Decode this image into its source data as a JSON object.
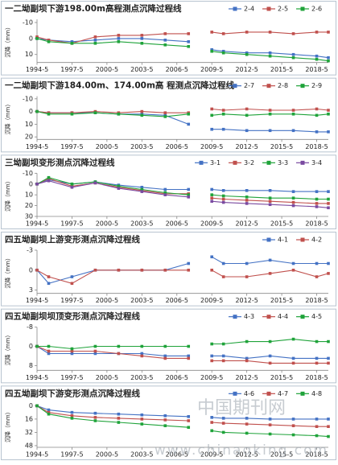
{
  "chart_data": [
    {
      "type": "line",
      "title": "一二坳副坝下游198.00m高程测点沉降过程线",
      "y_label": "沉降（mm）",
      "x": [
        "1994-5",
        "1995-5",
        "1997-5",
        "1999-5",
        "2001-5",
        "2003-5",
        "2005-5",
        "2007-5",
        "2008-5",
        "2009-5",
        "2010-5",
        "2012-5",
        "2014-5",
        "2016-5",
        "2018-5",
        "2019-5"
      ],
      "xlim": [
        "1994-5",
        "2019-5"
      ],
      "xticks": [
        "1994-5",
        "1997-5",
        "2000-5",
        "2003-5",
        "2006-5",
        "2009-5",
        "2012-5",
        "2015-5",
        "2018-5"
      ],
      "ylim": [
        -12,
        15
      ],
      "yticks": [
        -10,
        0,
        10
      ],
      "y_inverted": true,
      "series": [
        {
          "name": "2-4",
          "color": "#4472c4",
          "values": [
            0,
            1,
            2,
            1,
            0,
            0,
            1,
            2,
            null,
            7,
            8,
            9,
            9,
            10,
            11,
            12
          ]
        },
        {
          "name": "2-5",
          "color": "#c0504d",
          "values": [
            -1,
            1,
            3,
            -1,
            -2,
            -2,
            -3,
            -3,
            null,
            -4,
            -3,
            -4,
            -4,
            -3,
            -4,
            -4
          ]
        },
        {
          "name": "2-6",
          "color": "#1fa33a",
          "values": [
            0,
            2,
            3,
            3,
            2,
            3,
            4,
            5,
            null,
            8,
            9,
            10,
            11,
            12,
            13,
            14
          ]
        }
      ]
    },
    {
      "type": "line",
      "title": "一二坳副坝下游184.00m、174.00m高 程测点沉降过程线",
      "y_label": "沉降（mm）",
      "x": [
        "1994-5",
        "1995-5",
        "1997-5",
        "1999-5",
        "2001-5",
        "2003-5",
        "2005-5",
        "2007-5",
        "2008-5",
        "2009-5",
        "2010-5",
        "2012-5",
        "2014-5",
        "2016-5",
        "2018-5",
        "2019-5"
      ],
      "xlim": [
        "1994-5",
        "2019-5"
      ],
      "xticks": [
        "1994-5",
        "1997-5",
        "2000-5",
        "2003-5",
        "2006-5",
        "2009-5",
        "2012-5",
        "2015-5",
        "2018-5"
      ],
      "ylim": [
        -12,
        22
      ],
      "yticks": [
        -10,
        0,
        10,
        20
      ],
      "y_inverted": true,
      "series": [
        {
          "name": "2-7",
          "color": "#4472c4",
          "values": [
            0,
            1,
            1,
            1,
            2,
            2,
            3,
            10,
            null,
            14,
            14,
            15,
            15,
            15,
            16,
            16
          ]
        },
        {
          "name": "2-8",
          "color": "#c0504d",
          "values": [
            0,
            1,
            1,
            0,
            1,
            0,
            1,
            1,
            null,
            -2,
            -1,
            -2,
            -1,
            -1,
            -2,
            -1
          ]
        },
        {
          "name": "2-9",
          "color": "#1fa33a",
          "values": [
            0,
            2,
            2,
            1,
            2,
            3,
            4,
            2,
            null,
            3,
            2,
            3,
            2,
            2,
            3,
            2
          ]
        }
      ]
    },
    {
      "type": "line",
      "title": "三坳副坝变形测点沉降过程线",
      "y_label": "沉降（mm）",
      "x": [
        "1994-5",
        "1995-5",
        "1997-5",
        "1999-5",
        "2001-5",
        "2003-5",
        "2005-5",
        "2007-5",
        "2008-5",
        "2009-5",
        "2010-5",
        "2012-5",
        "2014-5",
        "2016-5",
        "2018-5",
        "2019-5"
      ],
      "xlim": [
        "1994-5",
        "2019-5"
      ],
      "xticks": [
        "1994-5",
        "1997-5",
        "2000-5",
        "2003-5",
        "2006-5",
        "2009-5",
        "2012-5",
        "2015-5",
        "2018-5"
      ],
      "ylim": [
        -10,
        30
      ],
      "yticks": [
        -10,
        0,
        10,
        20,
        30
      ],
      "y_inverted": true,
      "series": [
        {
          "name": "3-1",
          "color": "#4472c4",
          "values": [
            0,
            -4,
            0,
            -2,
            1,
            3,
            5,
            5,
            null,
            5,
            6,
            6,
            6,
            7,
            7,
            7
          ]
        },
        {
          "name": "3-2",
          "color": "#c0504d",
          "values": [
            0,
            -5,
            2,
            -1,
            3,
            6,
            9,
            9,
            null,
            13,
            14,
            15,
            16,
            17,
            18,
            18
          ]
        },
        {
          "name": "3-3",
          "color": "#1fa33a",
          "values": [
            0,
            -6,
            0,
            -2,
            2,
            5,
            8,
            10,
            null,
            10,
            11,
            12,
            13,
            13,
            14,
            14
          ]
        },
        {
          "name": "3-4",
          "color": "#7a4aa0",
          "values": [
            0,
            -3,
            3,
            -1,
            4,
            7,
            10,
            12,
            null,
            16,
            17,
            18,
            19,
            20,
            21,
            22
          ]
        }
      ]
    },
    {
      "type": "line",
      "title": "四五坳副坝上游变形测点沉降过程线",
      "y_label": "沉降（mm）",
      "x": [
        "1994-5",
        "1995-5",
        "1997-5",
        "1999-5",
        "2001-5",
        "2003-5",
        "2005-5",
        "2007-5",
        "2008-5",
        "2009-5",
        "2010-5",
        "2012-5",
        "2014-5",
        "2016-5",
        "2018-5",
        "2019-5"
      ],
      "xlim": [
        "1994-5",
        "2019-5"
      ],
      "xticks": [
        "1994-5",
        "1997-5",
        "2000-5",
        "2003-5",
        "2006-5",
        "2009-5",
        "2012-5",
        "2015-5",
        "2018-5"
      ],
      "ylim": [
        -3,
        3.5
      ],
      "yticks": [
        -3,
        0,
        3
      ],
      "y_inverted": true,
      "series": [
        {
          "name": "4-1",
          "color": "#4472c4",
          "values": [
            0,
            2,
            1,
            0,
            0,
            0,
            0,
            -1,
            null,
            -2,
            -1,
            -1,
            -1.5,
            -1,
            -1,
            -1
          ]
        },
        {
          "name": "4-2",
          "color": "#c0504d",
          "values": [
            0,
            1,
            2,
            0,
            0,
            0,
            0,
            0,
            null,
            0,
            1,
            1,
            0.5,
            0,
            1,
            0.5
          ]
        }
      ]
    },
    {
      "type": "line",
      "title": "四五坳副坝坝顶变形测点沉降过程线",
      "y_label": "沉降（mm）",
      "x": [
        "1994-5",
        "1995-5",
        "1997-5",
        "1999-5",
        "2001-5",
        "2003-5",
        "2005-5",
        "2007-5",
        "2008-5",
        "2009-5",
        "2010-5",
        "2012-5",
        "2014-5",
        "2016-5",
        "2018-5",
        "2019-5"
      ],
      "xlim": [
        "1994-5",
        "2019-5"
      ],
      "xticks": [
        "1994-5",
        "1997-5",
        "2000-5",
        "2003-5",
        "2006-5",
        "2009-5",
        "2012-5",
        "2015-5",
        "2018-5"
      ],
      "ylim": [
        -8,
        10
      ],
      "yticks": [
        -8,
        0,
        8
      ],
      "y_inverted": true,
      "series": [
        {
          "name": "4-3",
          "color": "#4472c4",
          "values": [
            0,
            3,
            3,
            3,
            3,
            3,
            4,
            4,
            null,
            4,
            4,
            5,
            4,
            5,
            5,
            5
          ]
        },
        {
          "name": "4-4",
          "color": "#c0504d",
          "values": [
            0,
            2,
            2,
            2,
            3,
            4,
            5,
            5,
            null,
            6,
            6,
            6,
            7,
            7,
            7,
            7
          ]
        },
        {
          "name": "4-5",
          "color": "#1fa33a",
          "values": [
            0,
            0,
            1,
            0,
            0,
            0,
            0,
            0,
            null,
            -1,
            -1,
            -2,
            -2,
            -3,
            -2,
            -2
          ]
        }
      ]
    },
    {
      "type": "line",
      "title": "四五坳副坝下游变形测点沉降过程线",
      "y_label": "沉降（mm）",
      "x": [
        "1994-5",
        "1995-5",
        "1997-5",
        "1999-5",
        "2001-5",
        "2003-5",
        "2005-5",
        "2007-5",
        "2008-5",
        "2009-5",
        "2010-5",
        "2012-5",
        "2014-5",
        "2016-5",
        "2018-5",
        "2019-5"
      ],
      "xlim": [
        "1994-5",
        "2019-5"
      ],
      "xticks": [
        "1994-5",
        "1997-5",
        "2000-5",
        "2003-5",
        "2006-5",
        "2009-5",
        "2012-5",
        "2015-5",
        "2018-5"
      ],
      "ylim": [
        -2,
        50
      ],
      "yticks": [
        0,
        16,
        32,
        48
      ],
      "y_inverted": true,
      "series": [
        {
          "name": "4-6",
          "color": "#4472c4",
          "values": [
            0,
            5,
            8,
            9,
            10,
            11,
            12,
            13,
            null,
            14,
            15,
            15,
            16,
            16,
            16,
            16
          ]
        },
        {
          "name": "4-7",
          "color": "#c0504d",
          "values": [
            0,
            8,
            12,
            14,
            15,
            16,
            17,
            18,
            null,
            20,
            21,
            22,
            23,
            24,
            25,
            25
          ]
        },
        {
          "name": "4-8",
          "color": "#1fa33a",
          "values": [
            0,
            10,
            15,
            18,
            20,
            22,
            24,
            26,
            null,
            30,
            32,
            33,
            34,
            35,
            36,
            37
          ]
        }
      ]
    }
  ],
  "watermark": [
    "中国期刊网",
    "www.chinaqking.com"
  ]
}
